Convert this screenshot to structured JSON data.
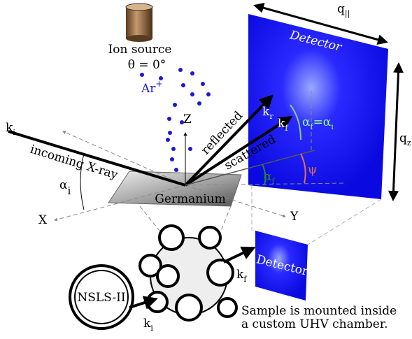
{
  "ion_source": {
    "label": "Ion source",
    "angle": "θ = 0°"
  },
  "ion": {
    "base": "Ar",
    "sup": "+"
  },
  "axes": {
    "z": "Z",
    "x": "X",
    "y": "Y"
  },
  "incoming": {
    "wavevector": {
      "base": "k",
      "sub": "i"
    },
    "label": "incoming X-ray",
    "angle": {
      "base": "α",
      "sub": "i"
    }
  },
  "reflected": {
    "label": "reflected",
    "wavevector": {
      "base": "k",
      "sub": "r"
    }
  },
  "scattered": {
    "label": "scattered",
    "wavevector": {
      "base": "k",
      "sub": "f"
    }
  },
  "specular": {
    "a": "α",
    "a_sub": "f",
    "eq": "=α",
    "b_sub": "i"
  },
  "exit_angle": {
    "base": "α",
    "sub": "f"
  },
  "azimuth": "ψ",
  "sample": "Germanium",
  "detector": {
    "label": "Detector",
    "q_par": {
      "base": "q",
      "sub": "||"
    },
    "q_z": {
      "base": "q",
      "sub": "z"
    }
  },
  "setup": {
    "detector": "Detector",
    "kf": {
      "base": "k",
      "sub": "f"
    },
    "ki": {
      "base": "k",
      "sub": "i"
    },
    "ring": "NSLS-II",
    "caption": [
      "Sample is mounted inside",
      "a custom UHV chamber."
    ]
  }
}
